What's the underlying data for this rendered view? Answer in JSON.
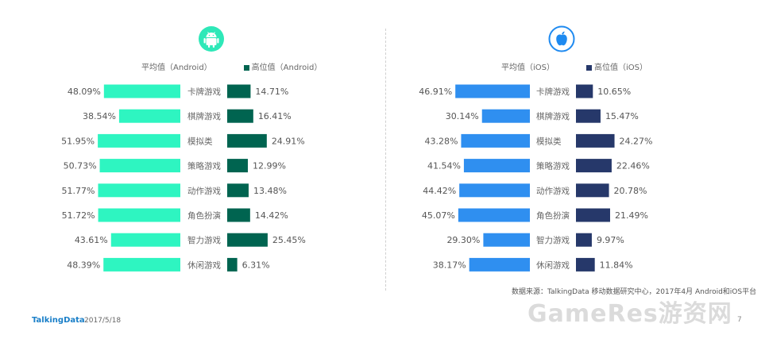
{
  "chart_data": [
    {
      "type": "bar",
      "platform": "Android",
      "categories": [
        "卡牌游戏",
        "棋牌游戏",
        "模拟类",
        "策略游戏",
        "动作游戏",
        "角色扮演",
        "智力游戏",
        "休闲游戏"
      ],
      "series": [
        {
          "name": "平均值（Android）",
          "values": [
            48.09,
            38.54,
            51.95,
            50.73,
            51.77,
            51.72,
            43.61,
            48.39
          ],
          "labels": [
            "48.09%",
            "38.54%",
            "51.95%",
            "50.73%",
            "51.77%",
            "51.72%",
            "43.61%",
            "48.39%"
          ],
          "direction": "left",
          "color": "#2ef5c1"
        },
        {
          "name": "高位值（Android）",
          "values": [
            14.71,
            16.41,
            24.91,
            12.99,
            13.48,
            14.42,
            25.45,
            6.31
          ],
          "labels": [
            "14.71%",
            "16.41%",
            "24.91%",
            "12.99%",
            "13.48%",
            "14.42%",
            "25.45%",
            "6.31%"
          ],
          "direction": "right",
          "color": "#006450"
        }
      ],
      "unit": "%"
    },
    {
      "type": "bar",
      "platform": "iOS",
      "categories": [
        "卡牌游戏",
        "棋牌游戏",
        "模拟类",
        "策略游戏",
        "动作游戏",
        "角色扮演",
        "智力游戏",
        "休闲游戏"
      ],
      "series": [
        {
          "name": "平均值（iOS）",
          "values": [
            46.91,
            30.14,
            43.28,
            41.54,
            44.42,
            45.07,
            29.3,
            38.17
          ],
          "labels": [
            "46.91%",
            "30.14%",
            "43.28%",
            "41.54%",
            "44.42%",
            "45.07%",
            "29.30%",
            "38.17%"
          ],
          "direction": "left",
          "color": "#2f8ff0"
        },
        {
          "name": "高位值（iOS）",
          "values": [
            10.65,
            15.47,
            24.27,
            22.46,
            20.78,
            21.49,
            9.97,
            11.84
          ],
          "labels": [
            "10.65%",
            "15.47%",
            "24.27%",
            "22.46%",
            "20.78%",
            "21.49%",
            "9.97%",
            "11.84%"
          ],
          "direction": "right",
          "color": "#26386a"
        }
      ],
      "unit": "%"
    }
  ],
  "legend": {
    "android_avg": "平均值（Android）",
    "android_high": "高位值（Android）",
    "ios_avg": "平均值（iOS）",
    "ios_high": "高位值（iOS）"
  },
  "logos": {
    "android": "android-icon",
    "ios": "apple-icon"
  },
  "colors": {
    "android_avg": "#2ef5c1",
    "android_high": "#006450",
    "android_logo": "#2ee8b8",
    "ios_avg": "#2f8ff0",
    "ios_high": "#26386a",
    "ios_logo": "#1e8af0"
  },
  "footer": {
    "source": "数据来源：TalkingData 移动数据研究中心，2017年4月 Android和iOS平台",
    "brand": "TalkingData",
    "date": "2017/5/18",
    "watermark": "GameRes游资网",
    "page": "7"
  }
}
